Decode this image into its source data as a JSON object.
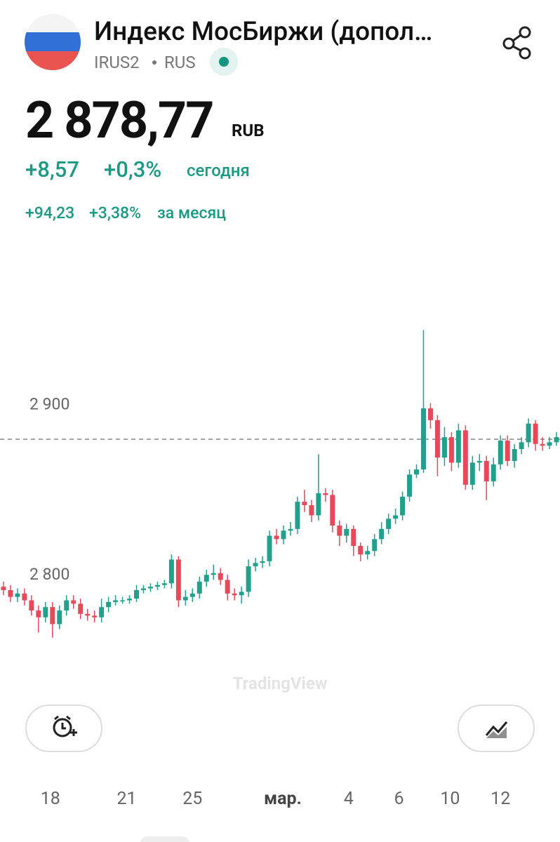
{
  "header": {
    "title": "Индекс МосБиржи (допол…",
    "ticker": "IRUS2",
    "exchange": "RUS"
  },
  "quote": {
    "price": {
      "value": 2878.77,
      "label": "2 878,77"
    },
    "currency": "RUB",
    "change_today": "+8,57",
    "change_today_pct": "+0,3%",
    "today_label": "сегодня",
    "change_month": "+94,23",
    "change_month_pct": "+3,38%",
    "month_label": "за месяц"
  },
  "chart_data": {
    "type": "candlestick",
    "watermark": "TradingView",
    "open": [
      2792,
      2790,
      2786,
      2788,
      2784,
      2778,
      2774,
      2780,
      2770,
      2778,
      2784,
      2782,
      2776,
      2775,
      2774,
      2780,
      2783,
      2784,
      2784,
      2785,
      2790,
      2791,
      2792,
      2793,
      2794,
      2808,
      2784,
      2786,
      2788,
      2795,
      2799,
      2800,
      2796,
      2788,
      2787,
      2789,
      2804,
      2806,
      2807,
      2822,
      2820,
      2825,
      2826,
      2842,
      2840,
      2834,
      2847,
      2846,
      2828,
      2822,
      2826,
      2816,
      2811,
      2813,
      2820,
      2826,
      2832,
      2834,
      2845,
      2858,
      2861,
      2897,
      2890,
      2868,
      2880,
      2865,
      2884,
      2852,
      2865,
      2866,
      2854,
      2864,
      2878,
      2866,
      2873,
      2877,
      2888,
      2876,
      2875,
      2877
    ],
    "high": [
      2795,
      2793,
      2791,
      2791,
      2787,
      2781,
      2783,
      2783,
      2781,
      2787,
      2787,
      2785,
      2779,
      2778,
      2785,
      2786,
      2787,
      2786,
      2787,
      2793,
      2793,
      2794,
      2795,
      2796,
      2811,
      2810,
      2790,
      2791,
      2798,
      2802,
      2805,
      2803,
      2799,
      2791,
      2792,
      2808,
      2809,
      2810,
      2825,
      2826,
      2828,
      2830,
      2845,
      2849,
      2843,
      2870,
      2850,
      2849,
      2831,
      2829,
      2828,
      2818,
      2816,
      2823,
      2830,
      2835,
      2838,
      2848,
      2861,
      2864,
      2943,
      2900,
      2893,
      2886,
      2883,
      2888,
      2887,
      2869,
      2870,
      2869,
      2868,
      2881,
      2881,
      2876,
      2880,
      2891,
      2890,
      2880,
      2880,
      2883
    ],
    "low": [
      2787,
      2783,
      2783,
      2781,
      2775,
      2765,
      2771,
      2762,
      2767,
      2775,
      2779,
      2773,
      2772,
      2771,
      2771,
      2777,
      2781,
      2782,
      2782,
      2783,
      2788,
      2789,
      2790,
      2791,
      2791,
      2780,
      2781,
      2783,
      2785,
      2792,
      2796,
      2793,
      2784,
      2784,
      2782,
      2786,
      2801,
      2803,
      2804,
      2817,
      2817,
      2822,
      2823,
      2836,
      2830,
      2831,
      2842,
      2824,
      2816,
      2818,
      2810,
      2807,
      2808,
      2810,
      2817,
      2823,
      2829,
      2831,
      2842,
      2856,
      2859,
      2885,
      2857,
      2863,
      2860,
      2862,
      2849,
      2849,
      2860,
      2843,
      2851,
      2861,
      2863,
      2862,
      2870,
      2874,
      2872,
      2872,
      2873,
      2875
    ],
    "close": [
      2790,
      2786,
      2788,
      2784,
      2778,
      2774,
      2780,
      2770,
      2778,
      2784,
      2782,
      2776,
      2775,
      2774,
      2780,
      2783,
      2784,
      2784,
      2785,
      2790,
      2791,
      2792,
      2793,
      2794,
      2808,
      2784,
      2786,
      2788,
      2795,
      2799,
      2800,
      2796,
      2788,
      2787,
      2789,
      2804,
      2806,
      2807,
      2822,
      2820,
      2825,
      2826,
      2842,
      2840,
      2834,
      2847,
      2846,
      2828,
      2822,
      2826,
      2816,
      2811,
      2813,
      2820,
      2826,
      2832,
      2834,
      2845,
      2858,
      2861,
      2897,
      2890,
      2868,
      2880,
      2865,
      2884,
      2852,
      2865,
      2866,
      2854,
      2864,
      2878,
      2866,
      2873,
      2877,
      2888,
      2876,
      2875,
      2877,
      2880
    ],
    "up_color": "#22a08c",
    "down_color": "#e8495a",
    "ylim": [
      2745,
      3001
    ],
    "yticks": [
      {
        "value": 2900,
        "label": "2 900"
      },
      {
        "value": 2800,
        "label": "2 800"
      }
    ],
    "xlim": [
      0,
      80
    ],
    "xticks": [
      {
        "value": 7.2,
        "label": "18"
      },
      {
        "value": 18.1,
        "label": "21"
      },
      {
        "value": 27.5,
        "label": "25"
      },
      {
        "value": 40.4,
        "label": "мар."
      },
      {
        "value": 49.8,
        "label": "4"
      },
      {
        "value": 57,
        "label": "6"
      },
      {
        "value": 64.3,
        "label": "10"
      },
      {
        "value": 71.5,
        "label": "12"
      }
    ],
    "price_line": true
  }
}
